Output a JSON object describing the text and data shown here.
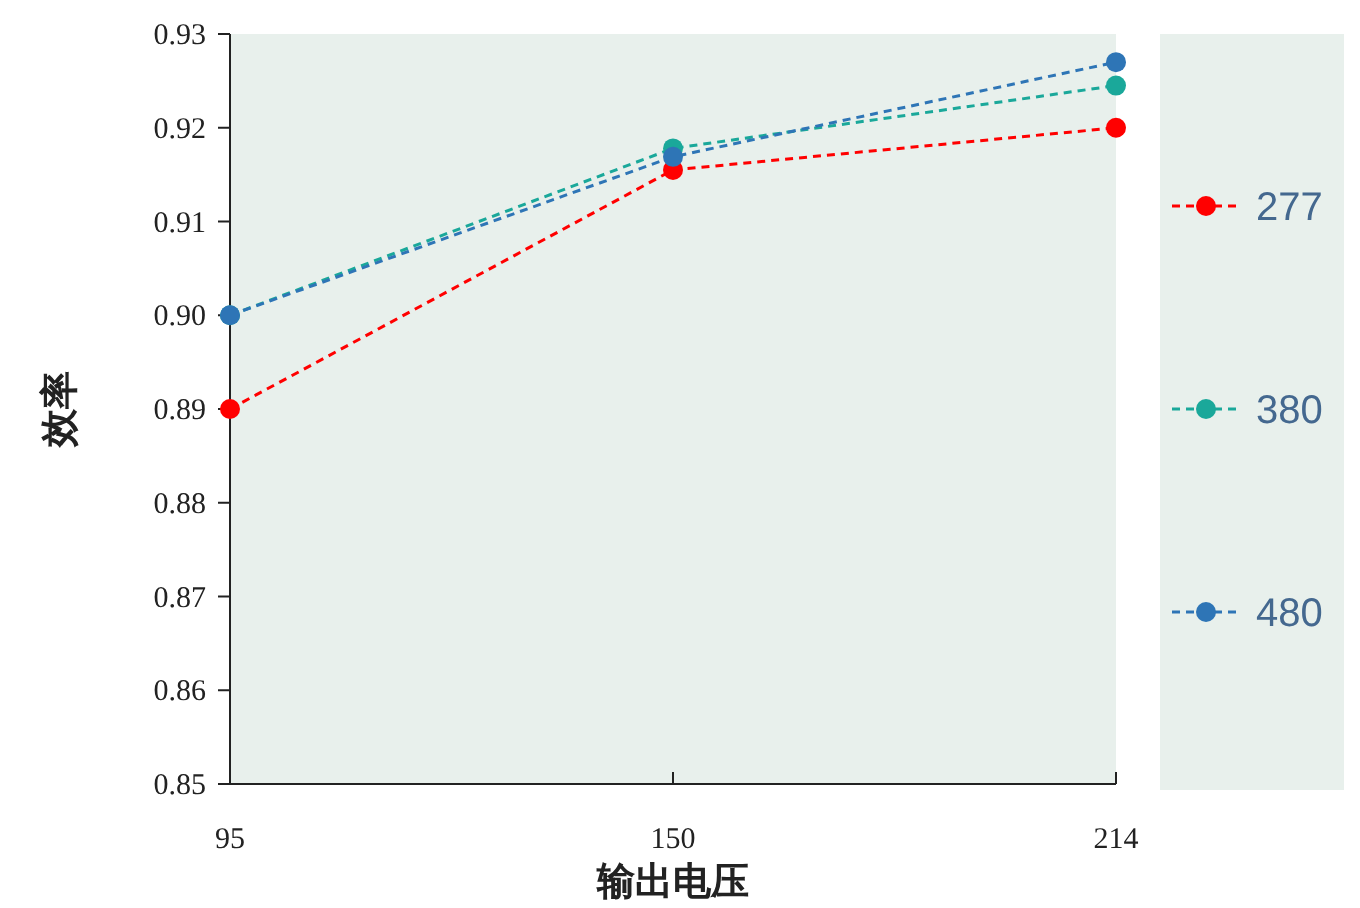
{
  "chart_data": {
    "type": "line",
    "xlabel": "输出电压",
    "ylabel": "效率",
    "categories": [
      "95",
      "150",
      "214"
    ],
    "series": [
      {
        "name": "277",
        "color": "#ff0000",
        "values": [
          0.89,
          0.9155,
          0.92
        ]
      },
      {
        "name": "380",
        "color": "#1aa89a",
        "values": [
          0.9,
          0.9178,
          0.9245
        ]
      },
      {
        "name": "480",
        "color": "#2e75b6",
        "values": [
          0.9,
          0.9169,
          0.927
        ]
      }
    ],
    "ylim": [
      0.85,
      0.93
    ],
    "yticks": [
      0.85,
      0.86,
      0.87,
      0.88,
      0.89,
      {
        "value": 0.9,
        "label": "0.90"
      },
      0.91,
      0.92,
      0.93
    ],
    "legend": "right",
    "marker": "circle",
    "line_style": "dashed"
  }
}
